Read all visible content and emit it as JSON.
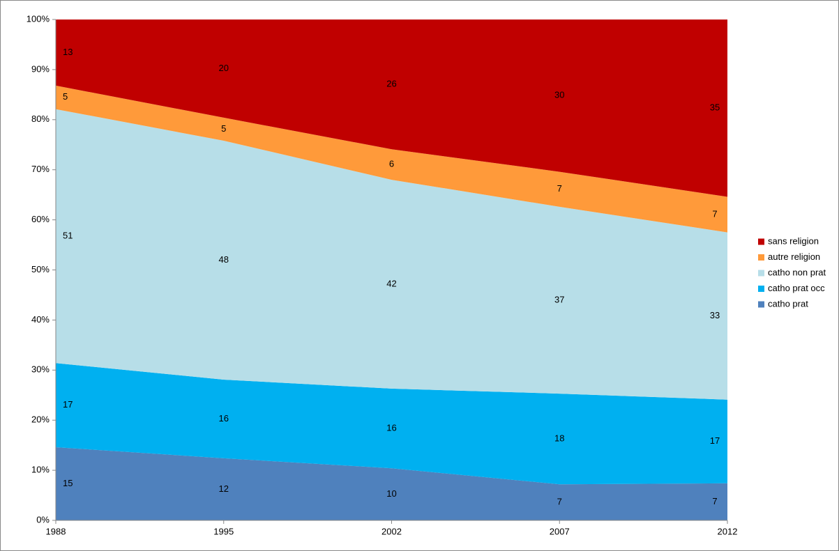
{
  "chart_data": {
    "type": "stacked_area_100",
    "categories": [
      "1988",
      "1995",
      "2002",
      "2007",
      "2012"
    ],
    "series": [
      {
        "name": "catho prat",
        "color": "#4f81bd",
        "values": [
          14.6,
          12.4,
          10.4,
          7.2,
          7.4
        ],
        "value_labels": [
          "15",
          "12",
          "10",
          "7",
          "7"
        ]
      },
      {
        "name": "catho prat occ",
        "color": "#00b0f0",
        "values": [
          16.8,
          15.7,
          15.9,
          18.1,
          16.7
        ],
        "value_labels": [
          "17",
          "16",
          "16",
          "18",
          "17"
        ]
      },
      {
        "name": "catho non prat",
        "color": "#b7dee8",
        "values": [
          50.7,
          47.7,
          41.7,
          37.3,
          33.4
        ],
        "value_labels": [
          "51",
          "48",
          "42",
          "37",
          "33"
        ]
      },
      {
        "name": "autre religion",
        "color": "#ff9a3a",
        "values": [
          4.7,
          4.6,
          6.1,
          7.0,
          7.1
        ],
        "value_labels": [
          "5",
          "5",
          "6",
          "7",
          "7"
        ]
      },
      {
        "name": "sans religion",
        "color": "#c00000",
        "values": [
          13.2,
          19.6,
          25.9,
          30.4,
          35.4
        ],
        "value_labels": [
          "13",
          "20",
          "26",
          "30",
          "35"
        ]
      }
    ],
    "ylim": [
      0,
      100
    ],
    "yticks": [
      {
        "value": 0,
        "label": "0%"
      },
      {
        "value": 10,
        "label": "10%"
      },
      {
        "value": 20,
        "label": "20%"
      },
      {
        "value": 30,
        "label": "30%"
      },
      {
        "value": 40,
        "label": "40%"
      },
      {
        "value": 50,
        "label": "50%"
      },
      {
        "value": 60,
        "label": "60%"
      },
      {
        "value": 70,
        "label": "70%"
      },
      {
        "value": 80,
        "label": "80%"
      },
      {
        "value": 90,
        "label": "90%"
      },
      {
        "value": 100,
        "label": "100%"
      }
    ],
    "grid": false,
    "legend": "right"
  }
}
